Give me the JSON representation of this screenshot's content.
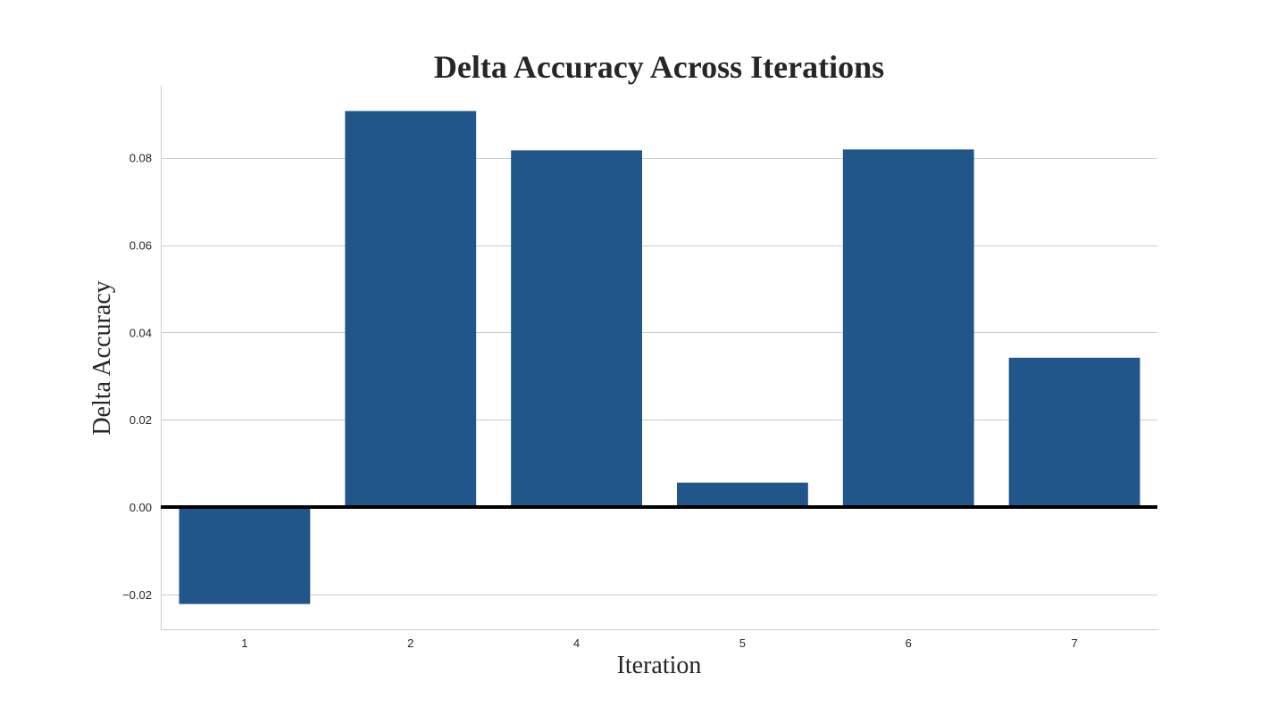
{
  "chart_data": {
    "type": "bar",
    "title": "Delta Accuracy Across Iterations",
    "xlabel": "Iteration",
    "ylabel": "Delta Accuracy",
    "categories": [
      "1",
      "2",
      "4",
      "5",
      "6",
      "7"
    ],
    "values": [
      -0.0222,
      0.0907,
      0.0817,
      0.0056,
      0.0819,
      0.0342
    ],
    "ylim": [
      -0.028,
      0.0965
    ],
    "yticks": [
      -0.02,
      0.0,
      0.02,
      0.04,
      0.06,
      0.08
    ],
    "ytick_labels": [
      "−0.02",
      "0.00",
      "0.02",
      "0.04",
      "0.06",
      "0.08"
    ],
    "grid": true,
    "reference_line": 0,
    "colors": {
      "bar": "#21568b",
      "reference_line": "#000000"
    }
  }
}
